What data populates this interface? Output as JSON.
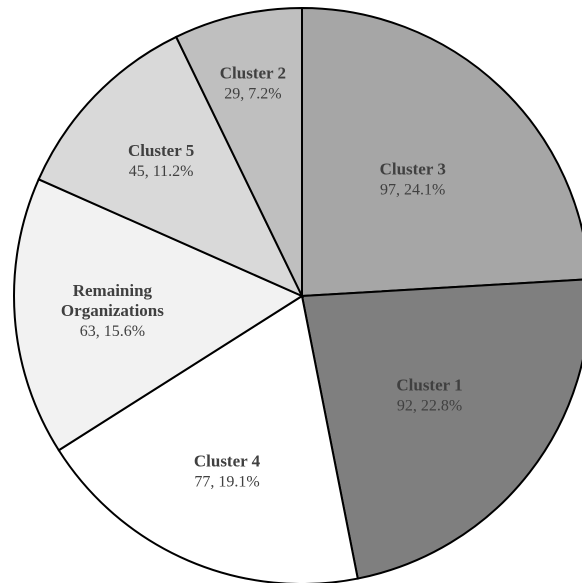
{
  "chart_data": {
    "type": "pie",
    "slices": [
      {
        "lines": [
          "Cluster 3"
        ],
        "value": 97,
        "value_label": "97, 24.1%",
        "color": "#A6A6A6"
      },
      {
        "lines": [
          "Cluster 1"
        ],
        "value": 92,
        "value_label": "92, 22.8%",
        "color": "#7F7F7F"
      },
      {
        "lines": [
          "Cluster 4"
        ],
        "value": 77,
        "value_label": "77, 19.1%",
        "color": "#FFFFFF"
      },
      {
        "lines": [
          "Remaining",
          "Organizations"
        ],
        "value": 63,
        "value_label": "63, 15.6%",
        "color": "#F2F2F2"
      },
      {
        "lines": [
          "Cluster 5"
        ],
        "value": 45,
        "value_label": "45, 11.2%",
        "color": "#D9D9D9"
      },
      {
        "lines": [
          "Cluster 2"
        ],
        "value": 29,
        "value_label": "29, 7.2%",
        "color": "#BFBFBF"
      }
    ]
  }
}
